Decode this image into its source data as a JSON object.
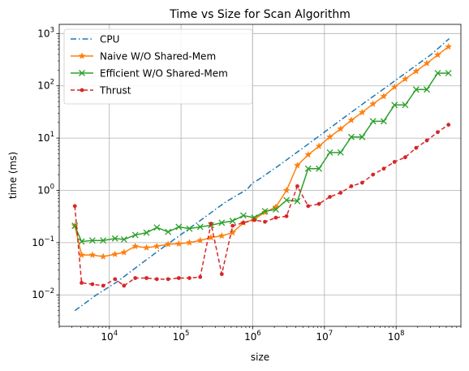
{
  "chart_data": {
    "type": "line",
    "title": "Time vs Size for Scan Algorithm",
    "xlabel": "size",
    "ylabel": "time (ms)",
    "xscale": "log",
    "yscale": "log",
    "xlim": [
      2000,
      800000000
    ],
    "ylim": [
      0.0025,
      1500
    ],
    "x_ticks": [
      {
        "value": 10000,
        "base": "10",
        "exp": "4"
      },
      {
        "value": 100000,
        "base": "10",
        "exp": "5"
      },
      {
        "value": 1000000,
        "base": "10",
        "exp": "6"
      },
      {
        "value": 10000000,
        "base": "10",
        "exp": "7"
      },
      {
        "value": 100000000,
        "base": "10",
        "exp": "8"
      }
    ],
    "y_ticks": [
      {
        "value": 0.01,
        "base": "10",
        "exp": "−2"
      },
      {
        "value": 0.1,
        "base": "10",
        "exp": "−1"
      },
      {
        "value": 1,
        "base": "10",
        "exp": "0"
      },
      {
        "value": 10,
        "base": "10",
        "exp": "1"
      },
      {
        "value": 100,
        "base": "10",
        "exp": "2"
      },
      {
        "value": 1000,
        "base": "10",
        "exp": "3"
      }
    ],
    "grid": true,
    "legend_position": "top-left",
    "series": [
      {
        "name": "CPU",
        "color": "#1f77b4",
        "dash": "dashdot",
        "marker": "none",
        "x": [
          3300,
          6600,
          13000,
          26000,
          52000,
          105000,
          210000,
          420000,
          840000,
          1000000,
          1200000,
          2400000,
          4800000,
          9600000,
          19000000,
          38000000,
          77000000,
          154000000,
          310000000,
          550000000
        ],
        "y": [
          0.005,
          0.01,
          0.018,
          0.037,
          0.075,
          0.15,
          0.3,
          0.6,
          1.05,
          1.4,
          1.6,
          3.1,
          6.2,
          12.5,
          25,
          50,
          100,
          200,
          400,
          800
        ]
      },
      {
        "name": "Naive W/O Shared-Mem",
        "color": "#ff7f0e",
        "dash": "solid",
        "marker": "star",
        "x": [
          3300,
          4100,
          5800,
          8200,
          12000,
          16000,
          23000,
          33000,
          46000,
          66000,
          93000,
          131000,
          185000,
          262000,
          370000,
          524000,
          740000,
          1050000,
          1480000,
          2100000,
          2960000,
          4190000,
          5930000,
          8390000,
          11900000,
          16800000,
          23700000,
          33600000,
          47500000,
          67100000,
          94900000,
          134000000,
          190000000,
          268000000,
          380000000,
          537000000
        ],
        "y": [
          0.21,
          0.058,
          0.058,
          0.054,
          0.06,
          0.065,
          0.085,
          0.08,
          0.085,
          0.093,
          0.095,
          0.1,
          0.11,
          0.125,
          0.135,
          0.155,
          0.24,
          0.28,
          0.38,
          0.48,
          1.0,
          3.0,
          4.8,
          7.0,
          10.5,
          15.0,
          22.0,
          31.0,
          45.0,
          63.0,
          95.0,
          135.0,
          190.0,
          270.0,
          390.0,
          560.0
        ]
      },
      {
        "name": "Efficient W/O Shared-Mem",
        "color": "#2ca02c",
        "dash": "solid",
        "marker": "x",
        "x": [
          3300,
          4100,
          5800,
          8200,
          12000,
          16000,
          23000,
          33000,
          46000,
          66000,
          93000,
          131000,
          185000,
          262000,
          370000,
          524000,
          740000,
          1050000,
          1480000,
          2100000,
          2960000,
          4190000,
          5930000,
          8390000,
          11900000,
          16800000,
          23700000,
          33600000,
          47500000,
          67100000,
          94900000,
          134000000,
          190000000,
          268000000,
          380000000,
          537000000
        ],
        "y": [
          0.21,
          0.105,
          0.11,
          0.11,
          0.12,
          0.115,
          0.14,
          0.155,
          0.195,
          0.16,
          0.2,
          0.185,
          0.2,
          0.215,
          0.24,
          0.26,
          0.33,
          0.3,
          0.4,
          0.43,
          0.65,
          0.62,
          2.6,
          2.6,
          5.3,
          5.3,
          10.5,
          10.5,
          21.0,
          21.0,
          43.0,
          43.0,
          85.0,
          85.0,
          175.0,
          175.0
        ]
      },
      {
        "name": "Thrust",
        "color": "#d62728",
        "dash": "dashed",
        "marker": "circle",
        "x": [
          3300,
          4100,
          5800,
          8200,
          12000,
          16000,
          23000,
          33000,
          46000,
          66000,
          93000,
          131000,
          185000,
          262000,
          370000,
          524000,
          740000,
          1050000,
          1480000,
          2100000,
          2960000,
          4190000,
          5930000,
          8390000,
          11900000,
          16800000,
          23700000,
          33600000,
          47500000,
          67100000,
          94900000,
          134000000,
          190000000,
          268000000,
          380000000,
          537000000
        ],
        "y": [
          0.5,
          0.017,
          0.016,
          0.015,
          0.02,
          0.015,
          0.021,
          0.021,
          0.02,
          0.02,
          0.021,
          0.021,
          0.022,
          0.23,
          0.025,
          0.21,
          0.24,
          0.27,
          0.25,
          0.3,
          0.32,
          1.2,
          0.5,
          0.55,
          0.75,
          0.9,
          1.2,
          1.4,
          2.0,
          2.6,
          3.5,
          4.3,
          6.5,
          9.0,
          13.0,
          18.0
        ]
      }
    ]
  }
}
